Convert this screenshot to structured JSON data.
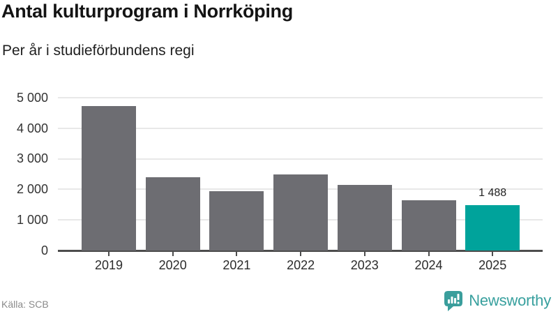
{
  "header": {
    "title": "Antal kulturprogram i Norrköping",
    "subtitle": "Per år i studieförbundens regi"
  },
  "chart_data": {
    "type": "bar",
    "title": "Antal kulturprogram i Norrköping",
    "subtitle": "Per år i studieförbundens regi",
    "categories": [
      "2019",
      "2020",
      "2021",
      "2022",
      "2023",
      "2024",
      "2025"
    ],
    "values": [
      4720,
      2400,
      1940,
      2500,
      2140,
      1640,
      1488
    ],
    "value_note": "only 2025 value labeled on chart; others estimated from gridlines",
    "bar_colors": [
      "#6d6d72",
      "#6d6d72",
      "#6d6d72",
      "#6d6d72",
      "#6d6d72",
      "#6d6d72",
      "#00a39b"
    ],
    "data_label": {
      "index": 6,
      "text": "1 488"
    },
    "xlabel": "",
    "ylabel": "",
    "ylim": [
      0,
      5000
    ],
    "yticks": [
      0,
      1000,
      2000,
      3000,
      4000,
      5000
    ],
    "ytick_labels": [
      "0",
      "1 000",
      "2 000",
      "3 000",
      "4 000",
      "5 000"
    ],
    "grid": "horizontal",
    "legend": "none"
  },
  "colors": {
    "bar_gray": "#6d6d72",
    "accent_teal": "#00a39b",
    "axis_dark": "#4d4d4d",
    "gridline": "#e8e8e8"
  },
  "footer": {
    "source": "Källa: SCB",
    "logo": {
      "text": "Newsworthy",
      "text_color": "#38a09e",
      "icon_color": "#3a9e9c"
    }
  }
}
